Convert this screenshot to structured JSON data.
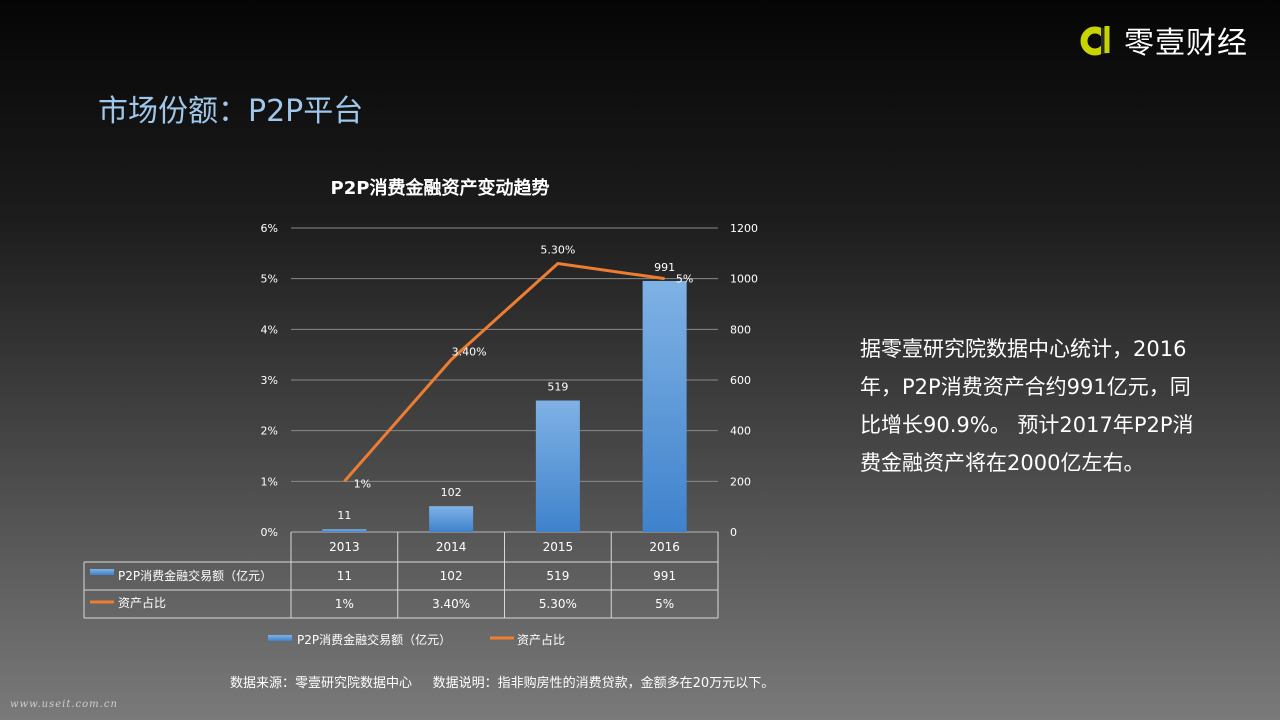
{
  "brand": {
    "name": "零壹财经",
    "accent": "#c8d400"
  },
  "page": {
    "title": "市场份额：P2P平台"
  },
  "chart_data": {
    "type": "bar+line",
    "title": "P2P消费金融资产变动趋势",
    "categories": [
      "2013",
      "2014",
      "2015",
      "2016"
    ],
    "series": [
      {
        "name": "P2P消费金融交易额（亿元）",
        "type": "bar",
        "axis": "right",
        "values": [
          11,
          102,
          519,
          991
        ],
        "labels": [
          "11",
          "102",
          "519",
          "991"
        ],
        "color": "#4a8fd4"
      },
      {
        "name": "资产占比",
        "type": "line",
        "axis": "left",
        "values": [
          1,
          3.4,
          5.3,
          5
        ],
        "labels": [
          "1%",
          "3.40%",
          "5.30%",
          "5%"
        ],
        "color": "#ed7d31"
      }
    ],
    "y_left": {
      "min": 0,
      "max": 6,
      "ticks": [
        "0%",
        "1%",
        "2%",
        "3%",
        "4%",
        "5%",
        "6%"
      ]
    },
    "y_right": {
      "min": 0,
      "max": 1200,
      "ticks": [
        "0",
        "200",
        "400",
        "600",
        "800",
        "1000",
        "1200"
      ]
    },
    "grid": true,
    "legend": "bottom",
    "data_table": true
  },
  "annotation": "据零壹研究院数据中心统计，2016年，P2P消费资产合约991亿元，同比增长90.9%。 预计2017年P2P消费金融资产将在2000亿左右。",
  "source_note": "数据来源：零壹研究院数据中心     数据说明：指非购房性的消费贷款，金额多在20万元以下。",
  "watermark": "www.useit.com.cn"
}
